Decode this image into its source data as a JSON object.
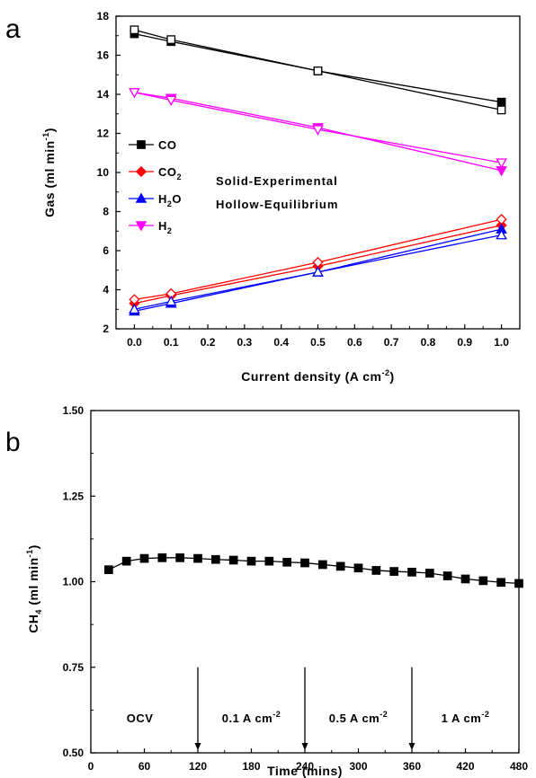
{
  "chart_data": [
    {
      "panel": "a",
      "type": "line",
      "xlabel": "Current density (A cm",
      "xlabel_sup": "-2",
      "xlabel_end": ")",
      "ylabel": "Gas (ml min",
      "ylabel_sup": "-1",
      "ylabel_end": ")",
      "xlim": [
        -0.05,
        1.05
      ],
      "ylim": [
        2,
        18
      ],
      "xticks": [
        "0.0",
        "0.1",
        "0.2",
        "0.3",
        "0.4",
        "0.5",
        "0.6",
        "0.7",
        "0.8",
        "0.9",
        "1.0"
      ],
      "yticks": [
        "2",
        "4",
        "6",
        "8",
        "10",
        "12",
        "14",
        "16",
        "18"
      ],
      "x": [
        0.0,
        0.1,
        0.5,
        1.0
      ],
      "series": [
        {
          "name": "CO",
          "color": "#000000",
          "marker": "square",
          "experimental": [
            17.1,
            16.7,
            15.2,
            13.6
          ],
          "equilibrium": [
            17.3,
            16.8,
            15.2,
            13.2
          ]
        },
        {
          "name": "CO",
          "sub": "2",
          "color": "#ff0000",
          "marker": "diamond",
          "experimental": [
            3.3,
            3.7,
            5.2,
            7.3
          ],
          "equilibrium": [
            3.5,
            3.8,
            5.4,
            7.6
          ]
        },
        {
          "name": "H",
          "sub": "2",
          "name_end": "O",
          "color": "#0000ff",
          "marker": "triangle-up",
          "experimental": [
            2.9,
            3.3,
            4.9,
            7.1
          ],
          "equilibrium": [
            3.0,
            3.4,
            4.9,
            6.8
          ]
        },
        {
          "name": "H",
          "sub": "2",
          "color": "#ff00ff",
          "marker": "triangle-down",
          "experimental": [
            14.1,
            13.8,
            12.3,
            10.1
          ],
          "equilibrium": [
            14.1,
            13.7,
            12.2,
            10.5
          ]
        }
      ],
      "annotation_line1": "Solid-Experimental",
      "annotation_line2": "Hollow-Equilibrium",
      "legend_position": "middle-left"
    },
    {
      "panel": "b",
      "type": "line",
      "xlabel": "Time (mins)",
      "ylabel": "CH",
      "ylabel_sub": "4",
      "ylabel_mid": " (ml min",
      "ylabel_sup": "-1",
      "ylabel_end": ")",
      "xlim": [
        0,
        480
      ],
      "ylim": [
        0.5,
        1.5
      ],
      "xticks": [
        "0",
        "60",
        "120",
        "180",
        "240",
        "300",
        "360",
        "420",
        "480"
      ],
      "yticks": [
        "0.50",
        "0.75",
        "1.00",
        "1.25",
        "1.50"
      ],
      "color": "#000000",
      "marker": "square",
      "x": [
        20,
        40,
        60,
        80,
        100,
        120,
        140,
        160,
        180,
        200,
        220,
        240,
        260,
        280,
        300,
        320,
        340,
        360,
        380,
        400,
        420,
        440,
        460,
        480
      ],
      "y": [
        1.035,
        1.06,
        1.068,
        1.07,
        1.07,
        1.068,
        1.065,
        1.063,
        1.06,
        1.06,
        1.057,
        1.055,
        1.05,
        1.045,
        1.04,
        1.033,
        1.03,
        1.028,
        1.025,
        1.017,
        1.008,
        1.003,
        0.998,
        0.995
      ],
      "dividers": [
        120,
        240,
        360
      ],
      "regions": [
        {
          "label": "OCV",
          "sup": "",
          "at": 55
        },
        {
          "label": "0.1 A cm",
          "sup": "-2",
          "at": 180
        },
        {
          "label": "0.5 A cm",
          "sup": "-2",
          "at": 300
        },
        {
          "label": "1 A cm",
          "sup": "-2",
          "at": 420
        }
      ]
    }
  ],
  "panel_labels": {
    "a": "a",
    "b": "b"
  }
}
